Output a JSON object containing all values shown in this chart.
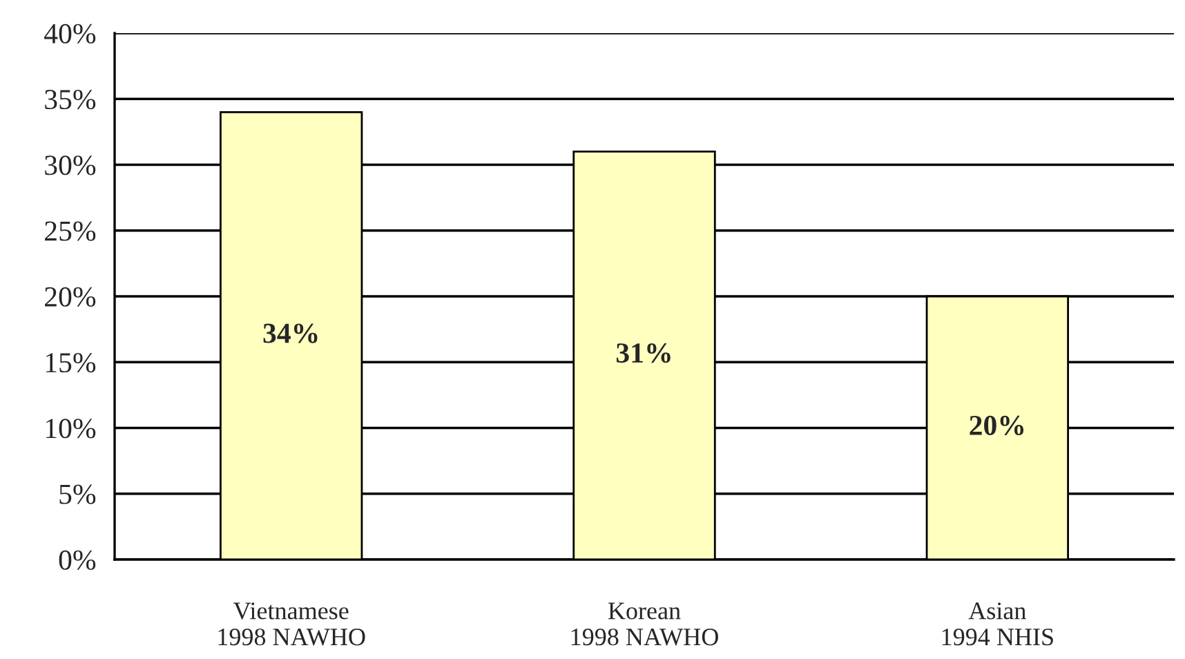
{
  "chart_data": {
    "type": "bar",
    "categories": [
      "Vietnamese\n1998 NAWHO",
      "Korean\n1998 NAWHO",
      "Asian\n1994 NHIS"
    ],
    "values": [
      34,
      31,
      20
    ],
    "value_labels": [
      "34%",
      "31%",
      "20%"
    ],
    "color": "#ffffc0",
    "ylim": [
      0,
      40
    ],
    "yticks": [
      {
        "value": 0,
        "label": "0%"
      },
      {
        "value": 5,
        "label": "5%"
      },
      {
        "value": 10,
        "label": "10%"
      },
      {
        "value": 15,
        "label": "15%"
      },
      {
        "value": 20,
        "label": "20%"
      },
      {
        "value": 25,
        "label": "25%"
      },
      {
        "value": 30,
        "label": "30%"
      },
      {
        "value": 35,
        "label": "35%"
      },
      {
        "value": 40,
        "label": "40%"
      }
    ],
    "grid": "y",
    "legend": false
  }
}
